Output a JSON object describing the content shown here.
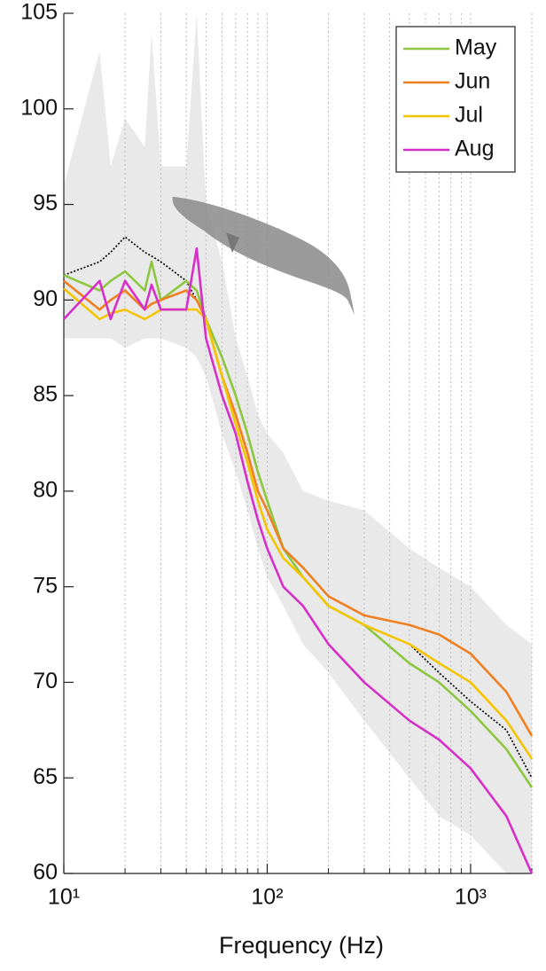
{
  "chart_data": {
    "type": "line",
    "xlabel": "Frequency (Hz)",
    "xscale": "log",
    "xlim": [
      10,
      2000
    ],
    "xticks": [
      {
        "value": 10,
        "label": "10¹"
      },
      {
        "value": 100,
        "label": "10²"
      },
      {
        "value": 1000,
        "label": "10³"
      }
    ],
    "xminorticks": [
      20,
      30,
      40,
      50,
      60,
      70,
      80,
      90,
      200,
      300,
      400,
      500,
      600,
      700,
      800,
      900,
      2000
    ],
    "ylim": [
      60,
      105
    ],
    "yticks": [
      60,
      65,
      70,
      75,
      80,
      85,
      90,
      95,
      100,
      105
    ],
    "xgrid": true,
    "legend": "upper right",
    "x": [
      10,
      15,
      17,
      20,
      25,
      27,
      30,
      40,
      45,
      50,
      60,
      70,
      80,
      90,
      100,
      120,
      150,
      200,
      300,
      500,
      700,
      1000,
      1500,
      2000
    ],
    "band": {
      "color": "#e9e9e9",
      "upper": [
        96,
        103,
        97,
        99.5,
        98,
        104,
        97,
        97,
        105,
        95,
        92,
        88,
        86,
        84,
        83,
        82,
        80,
        79.5,
        79,
        77,
        76,
        75,
        73,
        72
      ],
      "lower": [
        88,
        88,
        88,
        87.5,
        88,
        88,
        88,
        87.5,
        87,
        86,
        83,
        81,
        79,
        77,
        75.5,
        74,
        72,
        70.5,
        68,
        65,
        63,
        62,
        60,
        60
      ]
    },
    "series": [
      {
        "color": "#111111",
        "dash": true,
        "values": [
          91.3,
          92,
          92.5,
          93.3,
          92.5,
          92.3,
          92,
          91,
          90,
          89,
          86,
          83.5,
          81.5,
          79.5,
          78,
          76.5,
          75.5,
          74,
          73,
          72,
          70.5,
          69,
          67.5,
          65
        ]
      },
      {
        "name": "May",
        "color": "#8dc63f",
        "values": [
          91.3,
          90.5,
          91,
          91.5,
          90.5,
          92,
          90,
          91,
          90.5,
          89,
          87,
          85,
          83,
          81,
          79.5,
          77,
          75.5,
          74,
          73,
          71,
          70,
          68.5,
          66.5,
          64.5
        ]
      },
      {
        "name": "Jun",
        "color": "#f07f1f",
        "values": [
          91,
          89.5,
          90,
          90.5,
          89.5,
          89.8,
          90,
          90.5,
          90,
          89,
          86,
          84,
          82,
          80,
          79,
          77,
          76,
          74.5,
          73.5,
          73,
          72.5,
          71.5,
          69.5,
          67.2
        ]
      },
      {
        "name": "Jul",
        "color": "#f5c400",
        "values": [
          90.6,
          89,
          89.3,
          89.5,
          89,
          89.2,
          89.5,
          89.5,
          89.5,
          89,
          86,
          83.5,
          81.5,
          79.5,
          78,
          76.5,
          75.5,
          74,
          73,
          72,
          71,
          70,
          68,
          66
        ]
      },
      {
        "name": "Aug",
        "color": "#d62fc8",
        "values": [
          89,
          91,
          89,
          91,
          89.5,
          90.8,
          89.5,
          89.5,
          92.7,
          88,
          85,
          83,
          80.5,
          78.5,
          77,
          75,
          74,
          72,
          70,
          68,
          67,
          65.5,
          63,
          60
        ]
      }
    ]
  }
}
